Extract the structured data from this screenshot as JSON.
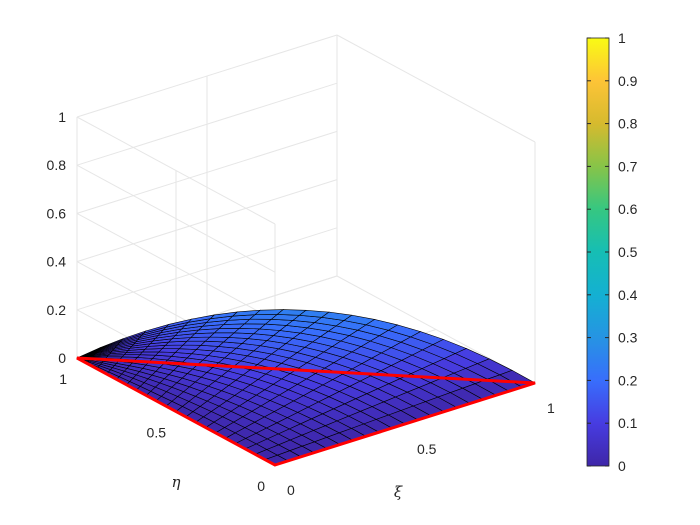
{
  "chart_data": {
    "type": "surface",
    "surface_function": "z = xi * eta, plotted over the triangle xi + eta <= 1",
    "xlabel": "ξ",
    "ylabel": "η",
    "zlabel": "",
    "xlim": [
      0,
      1
    ],
    "ylim": [
      0,
      1
    ],
    "zlim": [
      0,
      1
    ],
    "xticks": [
      "0",
      "0.5",
      "1"
    ],
    "yticks": [
      "0",
      "0.5",
      "1"
    ],
    "zticks": [
      "0",
      "0.2",
      "0.4",
      "0.6",
      "0.8",
      "1"
    ],
    "mesh_divisions": 20,
    "domain_triangle": {
      "vertices": [
        [
          0,
          0
        ],
        [
          1,
          0
        ],
        [
          0,
          1
        ]
      ],
      "boundary_color": "#ff0000"
    },
    "grid": true,
    "colormap": "parula",
    "colorbar": {
      "placement": "right",
      "range": [
        0,
        1
      ],
      "ticks": [
        "0",
        "0.1",
        "0.2",
        "0.3",
        "0.4",
        "0.5",
        "0.6",
        "0.7",
        "0.8",
        "0.9",
        "1"
      ]
    }
  }
}
